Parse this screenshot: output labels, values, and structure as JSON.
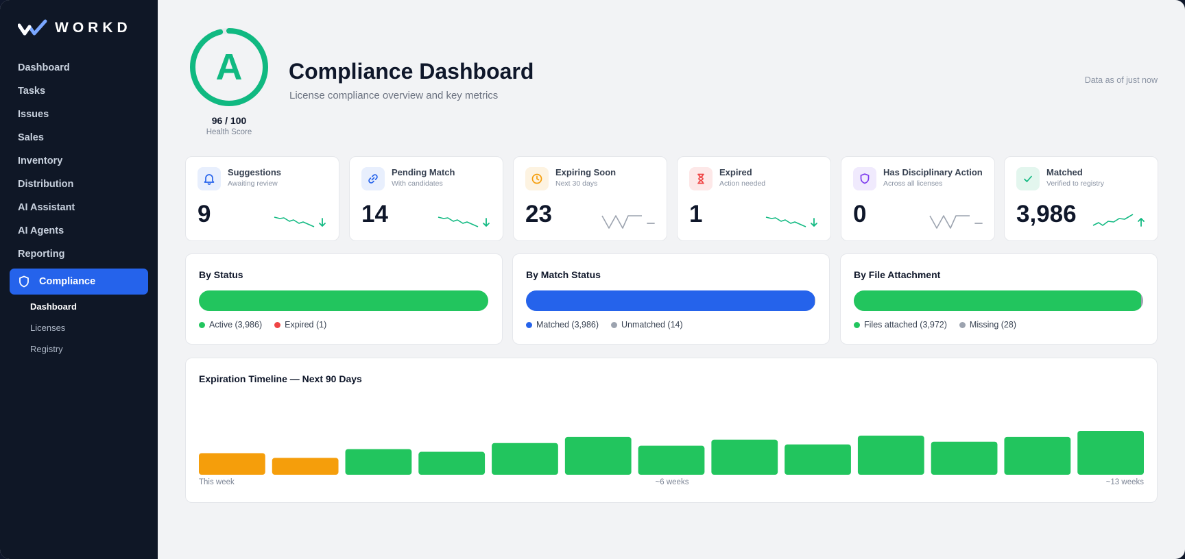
{
  "app": {
    "brand": "WORKD"
  },
  "sidebar": {
    "items": [
      {
        "label": "Dashboard"
      },
      {
        "label": "Tasks"
      },
      {
        "label": "Issues"
      },
      {
        "label": "Sales"
      },
      {
        "label": "Inventory"
      },
      {
        "label": "Distribution"
      },
      {
        "label": "AI Assistant"
      },
      {
        "label": "AI Agents"
      },
      {
        "label": "Reporting"
      }
    ],
    "active": {
      "label": "Compliance",
      "icon": "shield-icon"
    },
    "subitems": [
      {
        "label": "Dashboard",
        "current": true
      },
      {
        "label": "Licenses"
      },
      {
        "label": "Registry"
      }
    ]
  },
  "header": {
    "grade": "A",
    "score": "96 / 100",
    "score_fraction": 0.96,
    "score_label": "Health Score",
    "title": "Compliance Dashboard",
    "subtitle": "License compliance overview and key metrics",
    "data_as_of": "Data as of just now"
  },
  "stats": [
    {
      "title": "Suggestions",
      "subtitle": "Awaiting review",
      "value": "9",
      "icon": "bell-icon",
      "trend": "down",
      "color": "#2563eb",
      "bg": "#e8effd"
    },
    {
      "title": "Pending Match",
      "subtitle": "With candidates",
      "value": "14",
      "icon": "link-icon",
      "trend": "down",
      "color": "#2563eb",
      "bg": "#e8effd"
    },
    {
      "title": "Expiring Soon",
      "subtitle": "Next 30 days",
      "value": "23",
      "icon": "clock-icon",
      "trend": "flat",
      "color": "#f59e0b",
      "bg": "#fdf3e1"
    },
    {
      "title": "Expired",
      "subtitle": "Action needed",
      "value": "1",
      "icon": "hourglass-icon",
      "trend": "down",
      "color": "#ef4444",
      "bg": "#fde8e8"
    },
    {
      "title": "Has Disciplinary Action",
      "subtitle": "Across all licenses",
      "value": "0",
      "icon": "shield-icon",
      "trend": "flat",
      "color": "#7c3aed",
      "bg": "#f0eafd"
    },
    {
      "title": "Matched",
      "subtitle": "Verified to registry",
      "value": "3,986",
      "icon": "check-icon",
      "trend": "up",
      "color": "#10b981",
      "bg": "#e3f6ee"
    }
  ],
  "breakdowns": [
    {
      "title": "By Status",
      "segments": [
        {
          "label": "Active (3,986)",
          "value": 3986,
          "color": "#22c55e"
        },
        {
          "label": "Expired (1)",
          "value": 1,
          "color": "#ef4444"
        }
      ]
    },
    {
      "title": "By Match Status",
      "segments": [
        {
          "label": "Matched (3,986)",
          "value": 3986,
          "color": "#2563eb"
        },
        {
          "label": "Unmatched (14)",
          "value": 14,
          "color": "#9ca3af"
        }
      ]
    },
    {
      "title": "By File Attachment",
      "segments": [
        {
          "label": "Files attached (3,972)",
          "value": 3972,
          "color": "#22c55e"
        },
        {
          "label": "Missing (28)",
          "value": 28,
          "color": "#9ca3af"
        }
      ]
    }
  ],
  "timeline": {
    "title": "Expiration Timeline — Next 90 Days",
    "axis_labels": [
      "This week",
      "~6 weeks",
      "~13 weeks"
    ],
    "chart_data": {
      "type": "bar",
      "values": [
        32,
        25,
        38,
        34,
        47,
        56,
        43,
        52,
        45,
        58,
        49,
        56,
        65
      ],
      "colors": [
        "#f59e0b",
        "#f59e0b",
        "#22c55e",
        "#22c55e",
        "#22c55e",
        "#22c55e",
        "#22c55e",
        "#22c55e",
        "#22c55e",
        "#22c55e",
        "#22c55e",
        "#22c55e",
        "#22c55e"
      ]
    }
  }
}
